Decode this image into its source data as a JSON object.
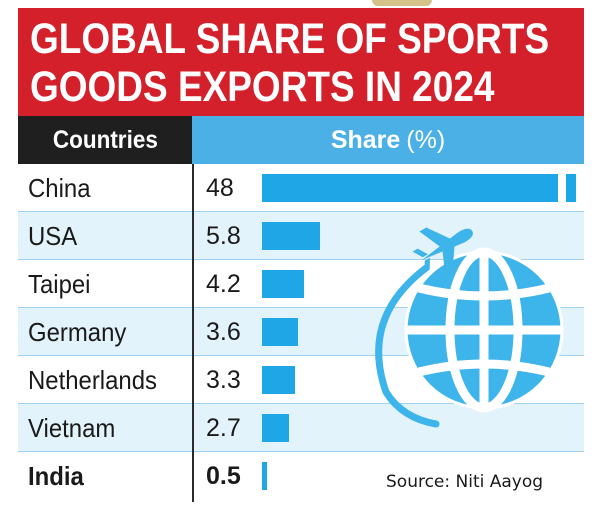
{
  "title": {
    "line1": "GLOBAL SHARE OF SPORTS",
    "line2": "GOODS EXPORTS IN 2024"
  },
  "header": {
    "countries": "Countries",
    "share": "Share",
    "unit": "(%)"
  },
  "source": "Source: Niti Aayog",
  "colors": {
    "banner": "#d4202a",
    "header_left": "#1f1f1f",
    "header_right": "#4bb0e6",
    "bar": "#1fa6e6",
    "row_shade": "#e3f3fc",
    "icon": "#3db4ea"
  },
  "icons": [
    "airplane-icon",
    "globe-icon"
  ],
  "chart_data": {
    "type": "bar",
    "orientation": "horizontal",
    "title": "GLOBAL SHARE OF SPORTS GOODS EXPORTS IN 2024",
    "categories": [
      "China",
      "USA",
      "Taipei",
      "Germany",
      "Netherlands",
      "Vietnam",
      "India"
    ],
    "values": [
      48,
      5.8,
      4.2,
      3.6,
      3.3,
      2.7,
      0.5
    ],
    "value_labels": [
      "48",
      "5.8",
      "4.2",
      "3.6",
      "3.3",
      "2.7",
      "0.5"
    ],
    "axis_break_on": [
      "China"
    ],
    "highlighted": [
      "India"
    ],
    "xlabel": "Share (%)",
    "ylabel": "Countries"
  }
}
